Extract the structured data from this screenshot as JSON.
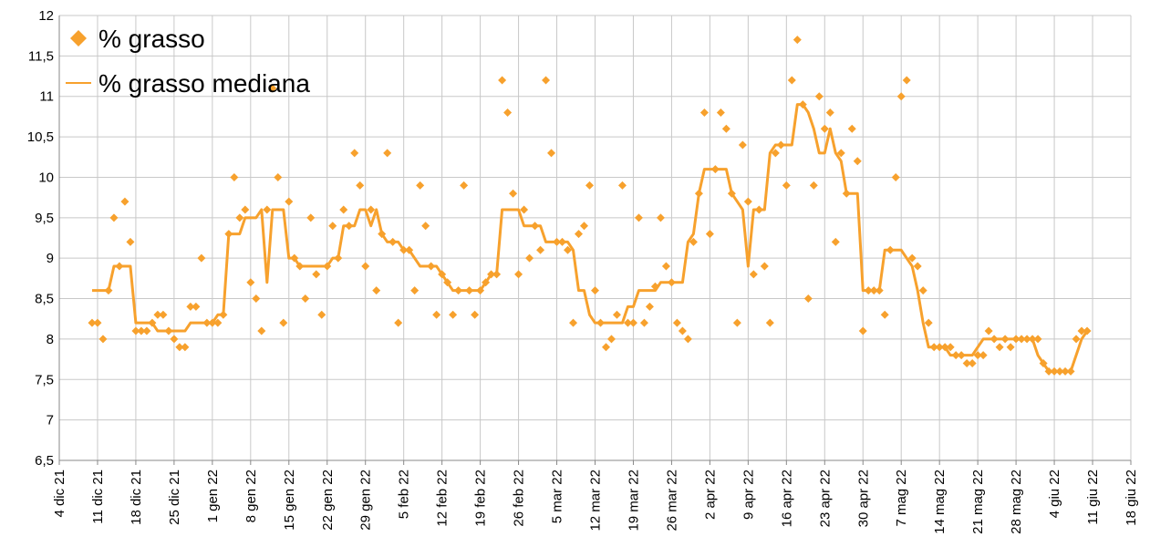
{
  "chart_data": {
    "type": "scatter",
    "xlim": [
      0,
      196
    ],
    "xticks": [
      {
        "value": 0,
        "label": "4 dic 21"
      },
      {
        "value": 7,
        "label": "11 dic 21"
      },
      {
        "value": 14,
        "label": "18 dic 21"
      },
      {
        "value": 21,
        "label": "25 dic 21"
      },
      {
        "value": 28,
        "label": "1 gen 22"
      },
      {
        "value": 35,
        "label": "8 gen 22"
      },
      {
        "value": 42,
        "label": "15 gen 22"
      },
      {
        "value": 49,
        "label": "22 gen 22"
      },
      {
        "value": 56,
        "label": "29 gen 22"
      },
      {
        "value": 63,
        "label": "5 feb 22"
      },
      {
        "value": 70,
        "label": "12 feb 22"
      },
      {
        "value": 77,
        "label": "19 feb 22"
      },
      {
        "value": 84,
        "label": "26 feb 22"
      },
      {
        "value": 91,
        "label": "5 mar 22"
      },
      {
        "value": 98,
        "label": "12 mar 22"
      },
      {
        "value": 105,
        "label": "19 mar 22"
      },
      {
        "value": 112,
        "label": "26 mar 22"
      },
      {
        "value": 119,
        "label": "2 apr 22"
      },
      {
        "value": 126,
        "label": "9 apr 22"
      },
      {
        "value": 133,
        "label": "16 apr 22"
      },
      {
        "value": 140,
        "label": "23 apr 22"
      },
      {
        "value": 147,
        "label": "30 apr 22"
      },
      {
        "value": 154,
        "label": "7 mag 22"
      },
      {
        "value": 161,
        "label": "14 mag 22"
      },
      {
        "value": 168,
        "label": "21 mag 22"
      },
      {
        "value": 175,
        "label": "28 mag 22"
      },
      {
        "value": 182,
        "label": "4 giu 22"
      },
      {
        "value": 189,
        "label": "11 giu 22"
      },
      {
        "value": 196,
        "label": "18 giu 22"
      }
    ],
    "ylim": [
      6.5,
      12
    ],
    "yticks": [
      {
        "value": 6.5,
        "label": "6,5"
      },
      7,
      {
        "value": 7.5,
        "label": "7,5"
      },
      8,
      {
        "value": 8.5,
        "label": "8,5"
      },
      9,
      {
        "value": 9.5,
        "label": "9,5"
      },
      10,
      {
        "value": 10.5,
        "label": "10,5"
      },
      11,
      {
        "value": 11.5,
        "label": "11,5"
      },
      12
    ],
    "grid": true,
    "legend": "top-left",
    "x": [
      6,
      7,
      8,
      9,
      10,
      11,
      12,
      13,
      14,
      15,
      16,
      17,
      18,
      19,
      20,
      21,
      22,
      23,
      24,
      25,
      26,
      27,
      28,
      29,
      30,
      31,
      32,
      33,
      34,
      35,
      36,
      37,
      38,
      39,
      40,
      41,
      42,
      43,
      44,
      45,
      46,
      47,
      48,
      49,
      50,
      51,
      52,
      53,
      54,
      55,
      56,
      57,
      58,
      59,
      60,
      61,
      62,
      63,
      64,
      65,
      66,
      67,
      68,
      69,
      70,
      71,
      72,
      73,
      74,
      75,
      76,
      77,
      78,
      79,
      80,
      81,
      82,
      83,
      84,
      85,
      86,
      87,
      88,
      89,
      90,
      91,
      92,
      93,
      94,
      95,
      96,
      97,
      98,
      99,
      100,
      101,
      102,
      103,
      104,
      105,
      106,
      107,
      108,
      109,
      110,
      111,
      112,
      113,
      114,
      115,
      116,
      117,
      118,
      119,
      120,
      121,
      122,
      123,
      124,
      125,
      126,
      127,
      128,
      129,
      130,
      131,
      132,
      133,
      134,
      135,
      136,
      137,
      138,
      139,
      140,
      141,
      142,
      143,
      144,
      145,
      146,
      147,
      148,
      149,
      150,
      151,
      152,
      153,
      154,
      155,
      156,
      157,
      158,
      159,
      160,
      161,
      162,
      163,
      164,
      165,
      166,
      167,
      168,
      169,
      170,
      171,
      172,
      173,
      174,
      175,
      176,
      177,
      178,
      179,
      180,
      181,
      182,
      183,
      184,
      185,
      186,
      187,
      188
    ],
    "series": [
      {
        "name": "% grasso",
        "color": "#f7a12d",
        "style": "markers",
        "values": [
          8.2,
          8.2,
          8.0,
          8.6,
          9.5,
          8.9,
          9.7,
          9.2,
          8.1,
          8.1,
          8.1,
          8.2,
          8.3,
          8.3,
          8.1,
          8.0,
          7.9,
          7.9,
          8.4,
          8.4,
          9.0,
          8.2,
          8.2,
          8.2,
          8.3,
          9.3,
          10.0,
          9.5,
          9.6,
          8.7,
          8.5,
          8.1,
          9.6,
          11.1,
          10.0,
          8.2,
          9.7,
          9.0,
          8.9,
          8.5,
          9.5,
          8.8,
          8.3,
          8.9,
          9.4,
          9.0,
          9.6,
          9.4,
          10.3,
          9.9,
          8.9,
          9.6,
          8.6,
          9.3,
          10.3,
          9.2,
          8.2,
          9.1,
          9.1,
          8.6,
          9.9,
          9.4,
          8.9,
          8.3,
          8.8,
          8.7,
          8.3,
          8.6,
          9.9,
          8.6,
          8.3,
          8.6,
          8.7,
          8.8,
          8.8,
          11.2,
          10.8,
          9.8,
          8.8,
          9.6,
          9.0,
          9.4,
          9.1,
          11.2,
          10.3,
          9.2,
          9.2,
          9.1,
          8.2,
          9.3,
          9.4,
          9.9,
          8.6,
          8.2,
          7.9,
          8.0,
          8.3,
          9.9,
          8.2,
          8.2,
          9.5,
          8.2,
          8.4,
          8.65,
          9.5,
          8.9,
          8.7,
          8.2,
          8.1,
          8.0,
          9.2,
          9.8,
          10.8,
          9.3,
          10.1,
          10.8,
          10.6,
          9.8,
          8.2,
          10.4,
          9.7,
          8.8,
          9.6,
          8.9,
          8.2,
          10.3,
          10.4,
          9.9,
          11.2,
          11.7,
          10.9,
          8.5,
          9.9,
          11.0,
          10.6,
          10.8,
          9.2,
          10.3,
          9.8,
          10.6,
          10.2,
          8.1,
          8.6,
          8.6,
          8.6,
          8.3,
          9.1,
          10.0,
          11.0,
          11.2,
          9.0,
          8.9,
          8.6,
          8.2,
          7.9,
          7.9,
          7.9,
          7.9,
          7.8,
          7.8,
          7.7,
          7.7,
          7.8,
          7.8,
          8.1,
          8.0,
          7.9,
          8.0,
          7.9,
          8.0,
          8.0,
          8.0,
          8.0,
          8.0,
          7.7,
          7.6,
          7.6,
          7.6,
          7.6,
          7.6,
          8.0,
          8.1,
          8.1
        ]
      },
      {
        "name": "% grasso mediana",
        "color": "#f7a12d",
        "style": "line",
        "values": [
          8.6,
          8.6,
          8.6,
          8.6,
          8.9,
          8.9,
          8.9,
          8.9,
          8.2,
          8.2,
          8.2,
          8.2,
          8.1,
          8.1,
          8.1,
          8.1,
          8.1,
          8.1,
          8.2,
          8.2,
          8.2,
          8.2,
          8.2,
          8.3,
          8.3,
          9.3,
          9.3,
          9.3,
          9.5,
          9.5,
          9.5,
          9.6,
          8.7,
          9.6,
          9.6,
          9.6,
          9.0,
          9.0,
          8.9,
          8.9,
          8.9,
          8.9,
          8.9,
          8.9,
          9.0,
          9.0,
          9.4,
          9.4,
          9.4,
          9.6,
          9.6,
          9.4,
          9.6,
          9.3,
          9.2,
          9.2,
          9.2,
          9.1,
          9.1,
          9.0,
          8.9,
          8.9,
          8.9,
          8.9,
          8.8,
          8.7,
          8.6,
          8.6,
          8.6,
          8.6,
          8.6,
          8.6,
          8.7,
          8.8,
          8.8,
          9.6,
          9.6,
          9.6,
          9.6,
          9.4,
          9.4,
          9.4,
          9.4,
          9.2,
          9.2,
          9.2,
          9.2,
          9.2,
          9.1,
          8.6,
          8.6,
          8.3,
          8.2,
          8.2,
          8.2,
          8.2,
          8.2,
          8.2,
          8.4,
          8.4,
          8.6,
          8.6,
          8.6,
          8.6,
          8.7,
          8.7,
          8.7,
          8.7,
          8.7,
          9.2,
          9.3,
          9.8,
          10.1,
          10.1,
          10.1,
          10.1,
          10.1,
          9.8,
          9.7,
          9.6,
          8.9,
          9.6,
          9.6,
          9.6,
          10.3,
          10.4,
          10.4,
          10.4,
          10.4,
          10.9,
          10.9,
          10.8,
          10.6,
          10.3,
          10.3,
          10.6,
          10.3,
          10.2,
          9.8,
          9.8,
          9.8,
          8.6,
          8.6,
          8.6,
          8.6,
          9.1,
          9.1,
          9.1,
          9.1,
          9.0,
          8.9,
          8.6,
          8.2,
          7.9,
          7.9,
          7.9,
          7.9,
          7.8,
          7.8,
          7.8,
          7.8,
          7.8,
          7.9,
          8.0,
          8.0,
          8.0,
          8.0,
          8.0,
          8.0,
          8.0,
          8.0,
          8.0,
          8.0,
          7.8,
          7.7,
          7.6,
          7.6,
          7.6,
          7.6,
          7.6,
          7.8,
          8.0,
          8.1
        ]
      }
    ]
  }
}
